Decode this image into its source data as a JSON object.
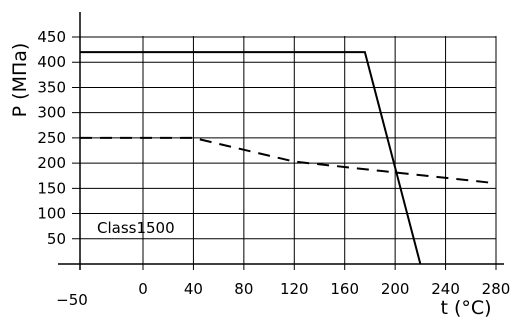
{
  "chart_data": {
    "type": "line",
    "xlabel": "t (°C)",
    "ylabel": "P (МПа)",
    "xlim": [
      -50,
      280
    ],
    "ylim": [
      0,
      460
    ],
    "x_ticks": [
      -50,
      0,
      40,
      80,
      120,
      160,
      200,
      240,
      280
    ],
    "x_tick_labels": [
      "−50",
      "0",
      "40",
      "80",
      "120",
      "160",
      "200",
      "240",
      "280"
    ],
    "y_ticks": [
      50,
      100,
      150,
      200,
      250,
      300,
      350,
      400,
      450
    ],
    "y_tick_labels": [
      "50",
      "100",
      "150",
      "200",
      "250",
      "300",
      "350",
      "400",
      "450"
    ],
    "grid": true,
    "series": [
      {
        "style": "solid",
        "x": [
          -50,
          176,
          220
        ],
        "y": [
          420,
          420,
          0
        ]
      },
      {
        "name": "Class1500",
        "style": "dashed",
        "x": [
          -50,
          40,
          120,
          280
        ],
        "y": [
          250,
          250,
          203,
          160
        ]
      }
    ],
    "annotations": [
      {
        "text": "Class1500",
        "series": 1
      }
    ]
  }
}
